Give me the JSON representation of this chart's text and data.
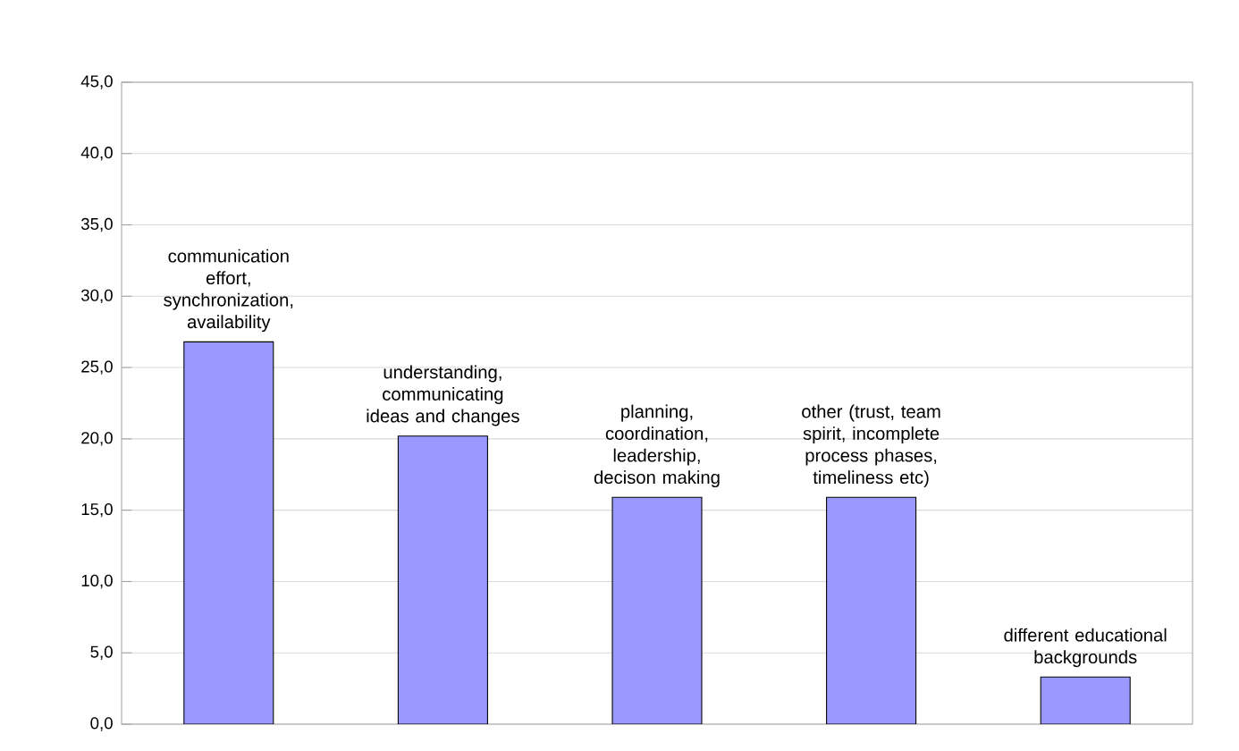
{
  "chart_data": {
    "type": "bar",
    "categories": [
      "communication effort, synchronization, availability",
      "understanding, communicating ideas and changes",
      "planning, coordination, leadership, decison making",
      "other (trust, team spirit, incomplete process phases, timeliness etc)",
      "different educational backgrounds"
    ],
    "values": [
      26.8,
      20.2,
      15.9,
      15.9,
      3.3
    ],
    "color": "#9999ff",
    "ylim": [
      0,
      45
    ],
    "yticks": [
      {
        "value": 0,
        "label": "0,0"
      },
      {
        "value": 5,
        "label": "5,0"
      },
      {
        "value": 10,
        "label": "10,0"
      },
      {
        "value": 15,
        "label": "15,0"
      },
      {
        "value": 20,
        "label": "20,0"
      },
      {
        "value": 25,
        "label": "25,0"
      },
      {
        "value": 30,
        "label": "30,0"
      },
      {
        "value": 35,
        "label": "35,0"
      },
      {
        "value": 40,
        "label": "40,0"
      },
      {
        "value": 45,
        "label": "45,0"
      }
    ],
    "grid": "y",
    "tick_labels": "y"
  }
}
